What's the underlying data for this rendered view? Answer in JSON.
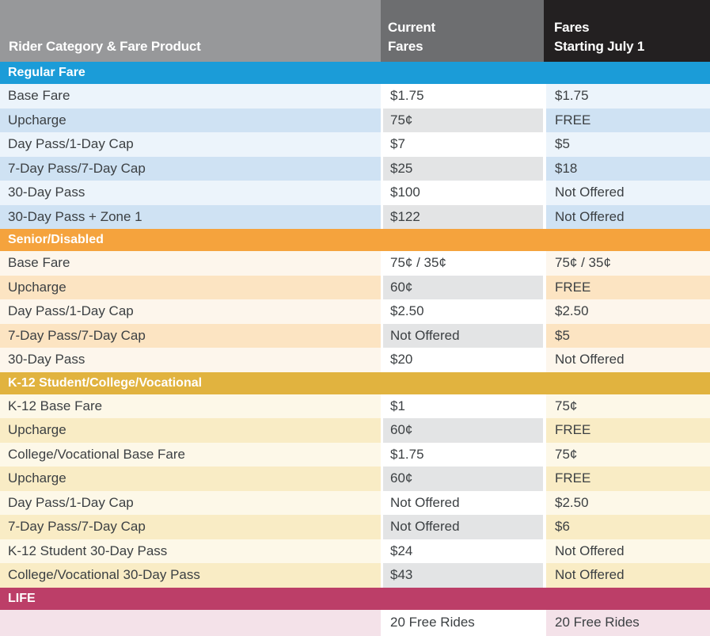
{
  "header": {
    "col1": "Rider Category & Fare Product",
    "col2_line1": "Current",
    "col2_line2": "Fares",
    "col3_line1": "Fares",
    "col3_line2": "Starting July 1"
  },
  "colors": {
    "header_col1_bg": "#97989a",
    "header_col2_bg": "#6d6e70",
    "header_col3_bg": "#232021",
    "cell_alt_gray": "#e3e4e5",
    "body_text": "#3c4043"
  },
  "sections": [
    {
      "title": "Regular Fare",
      "band_color": "#1b9cd8",
      "row_pale": "#ecf4fb",
      "row_tint": "#cfe2f3",
      "rows": [
        {
          "product": "Base Fare",
          "current": "$1.75",
          "july": "$1.75"
        },
        {
          "product": "Upcharge",
          "current": "75¢",
          "july": "FREE"
        },
        {
          "product": "Day Pass/1-Day Cap",
          "current": "$7",
          "july": "$5"
        },
        {
          "product": "7-Day Pass/7-Day Cap",
          "current": "$25",
          "july": "$18"
        },
        {
          "product": "30-Day Pass",
          "current": "$100",
          "july": "Not Offered"
        },
        {
          "product": "30-Day Pass + Zone 1",
          "current": "$122",
          "july": "Not Offered"
        }
      ]
    },
    {
      "title": "Senior/Disabled",
      "band_color": "#f5a33d",
      "row_pale": "#fdf6ec",
      "row_tint": "#fce4c2",
      "rows": [
        {
          "product": "Base Fare",
          "current": "75¢ / 35¢",
          "july": "75¢ / 35¢"
        },
        {
          "product": "Upcharge",
          "current": "60¢",
          "july": "FREE"
        },
        {
          "product": "Day Pass/1-Day Cap",
          "current": "$2.50",
          "july": "$2.50"
        },
        {
          "product": "7-Day Pass/7-Day Cap",
          "current": "Not Offered",
          "july": "$5"
        },
        {
          "product": "30-Day Pass",
          "current": "$20",
          "july": "Not Offered"
        }
      ]
    },
    {
      "title": "K-12 Student/College/Vocational",
      "band_color": "#e1b33f",
      "row_pale": "#fdf8e8",
      "row_tint": "#f9ecc5",
      "rows": [
        {
          "product": "K-12 Base Fare",
          "current": "$1",
          "july": "75¢"
        },
        {
          "product": "Upcharge",
          "current": "60¢",
          "july": "FREE"
        },
        {
          "product": "College/Vocational Base Fare",
          "current": "$1.75",
          "july": "75¢"
        },
        {
          "product": "Upcharge",
          "current": "60¢",
          "july": "FREE"
        },
        {
          "product": "Day Pass/1-Day Cap",
          "current": "Not Offered",
          "july": "$2.50"
        },
        {
          "product": "7-Day Pass/7-Day Cap",
          "current": "Not Offered",
          "july": "$6"
        },
        {
          "product": "K-12 Student 30-Day Pass",
          "current": "$24",
          "july": "Not Offered"
        },
        {
          "product": "College/Vocational 30-Day Pass",
          "current": "$43",
          "july": "Not Offered"
        }
      ]
    },
    {
      "title": "LIFE",
      "band_color": "#bc3e68",
      "row_pale": "#f4e2e9",
      "row_tint": "#f4e2e9",
      "rows": [
        {
          "product": "",
          "current": "20 Free Rides",
          "july": "20 Free Rides"
        }
      ]
    }
  ]
}
